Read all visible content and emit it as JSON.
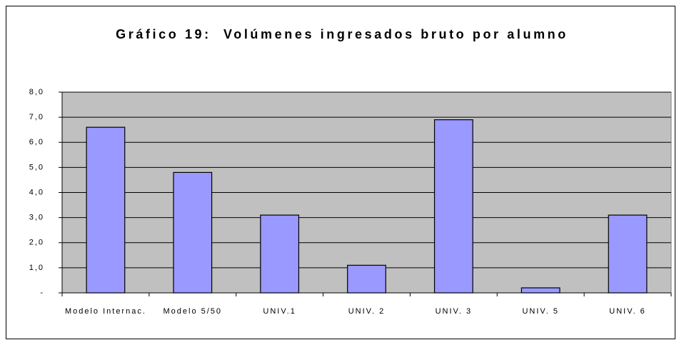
{
  "chart_data": {
    "type": "bar",
    "title": "Gráfico 19:  Volúmenes ingresados bruto por alumno",
    "categories": [
      "Modelo Internac.",
      "Modelo 5/50",
      "UNIV.1",
      "UNIV. 2",
      "UNIV. 3",
      "UNIV. 5",
      "UNIV. 6"
    ],
    "values": [
      6.6,
      4.8,
      3.1,
      1.1,
      6.9,
      0.2,
      3.1
    ],
    "color": "#9999ff",
    "ylim": [
      0,
      8
    ],
    "yticks": [
      {
        "value": 0,
        "label": "-"
      },
      {
        "value": 1,
        "label": "1,0"
      },
      {
        "value": 2,
        "label": "2,0"
      },
      {
        "value": 3,
        "label": "3,0"
      },
      {
        "value": 4,
        "label": "4,0"
      },
      {
        "value": 5,
        "label": "5,0"
      },
      {
        "value": 6,
        "label": "6,0"
      },
      {
        "value": 7,
        "label": "7,0"
      },
      {
        "value": 8,
        "label": "8,0"
      }
    ],
    "grid": true
  }
}
